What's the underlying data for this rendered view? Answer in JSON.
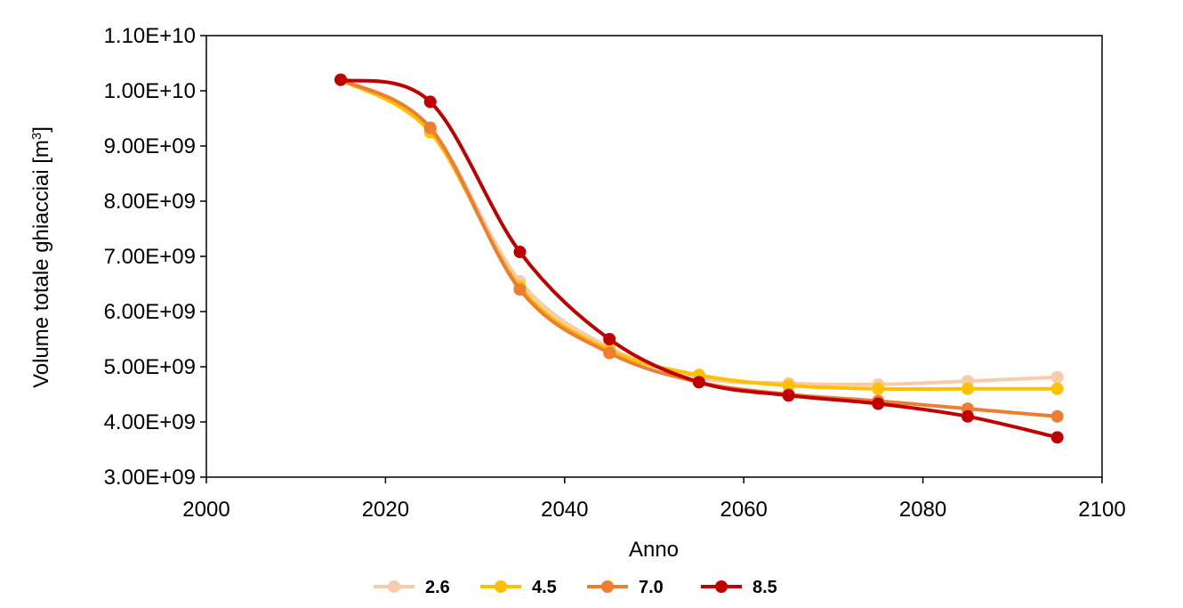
{
  "chart_data": {
    "type": "line",
    "title": "",
    "xlabel": "Anno",
    "ylabel_main": "Volume totale ghiacciai [m",
    "ylabel_sup": "3",
    "ylabel_close": "]",
    "xlim": [
      2000,
      2100
    ],
    "ylim": [
      3000000000.0,
      11000000000.0
    ],
    "x_ticks": [
      2000,
      2020,
      2040,
      2060,
      2080,
      2100
    ],
    "x_tick_labels": [
      "2000",
      "2020",
      "2040",
      "2060",
      "2080",
      "2100"
    ],
    "y_ticks": [
      3000000000.0,
      4000000000.0,
      5000000000.0,
      6000000000.0,
      7000000000.0,
      8000000000.0,
      9000000000.0,
      10000000000.0,
      11000000000.0
    ],
    "y_tick_labels": [
      "3.00E+09",
      "4.00E+09",
      "5.00E+09",
      "6.00E+09",
      "7.00E+09",
      "8.00E+09",
      "9.00E+09",
      "1.00E+10",
      "1.10E+10"
    ],
    "grid": false,
    "legend_position": "bottom",
    "x": [
      2015,
      2025,
      2035,
      2045,
      2055,
      2065,
      2075,
      2085,
      2095
    ],
    "series": [
      {
        "name": "2.6",
        "color": "#F8CBAD",
        "values": [
          10200000000.0,
          9300000000.0,
          6550000000.0,
          5350000000.0,
          4800000000.0,
          4700000000.0,
          4680000000.0,
          4740000000.0,
          4810000000.0
        ]
      },
      {
        "name": "4.5",
        "color": "#FFC000",
        "values": [
          10200000000.0,
          9250000000.0,
          6450000000.0,
          5300000000.0,
          4850000000.0,
          4660000000.0,
          4600000000.0,
          4600000000.0,
          4600000000.0
        ]
      },
      {
        "name": "7.0",
        "color": "#ED7D31",
        "values": [
          10200000000.0,
          9330000000.0,
          6400000000.0,
          5250000000.0,
          4720000000.0,
          4500000000.0,
          4380000000.0,
          4240000000.0,
          4100000000.0
        ]
      },
      {
        "name": "8.5",
        "color": "#C00000",
        "values": [
          10200000000.0,
          9800000000.0,
          7080000000.0,
          5500000000.0,
          4720000000.0,
          4480000000.0,
          4330000000.0,
          4100000000.0,
          3720000000.0
        ]
      }
    ]
  }
}
